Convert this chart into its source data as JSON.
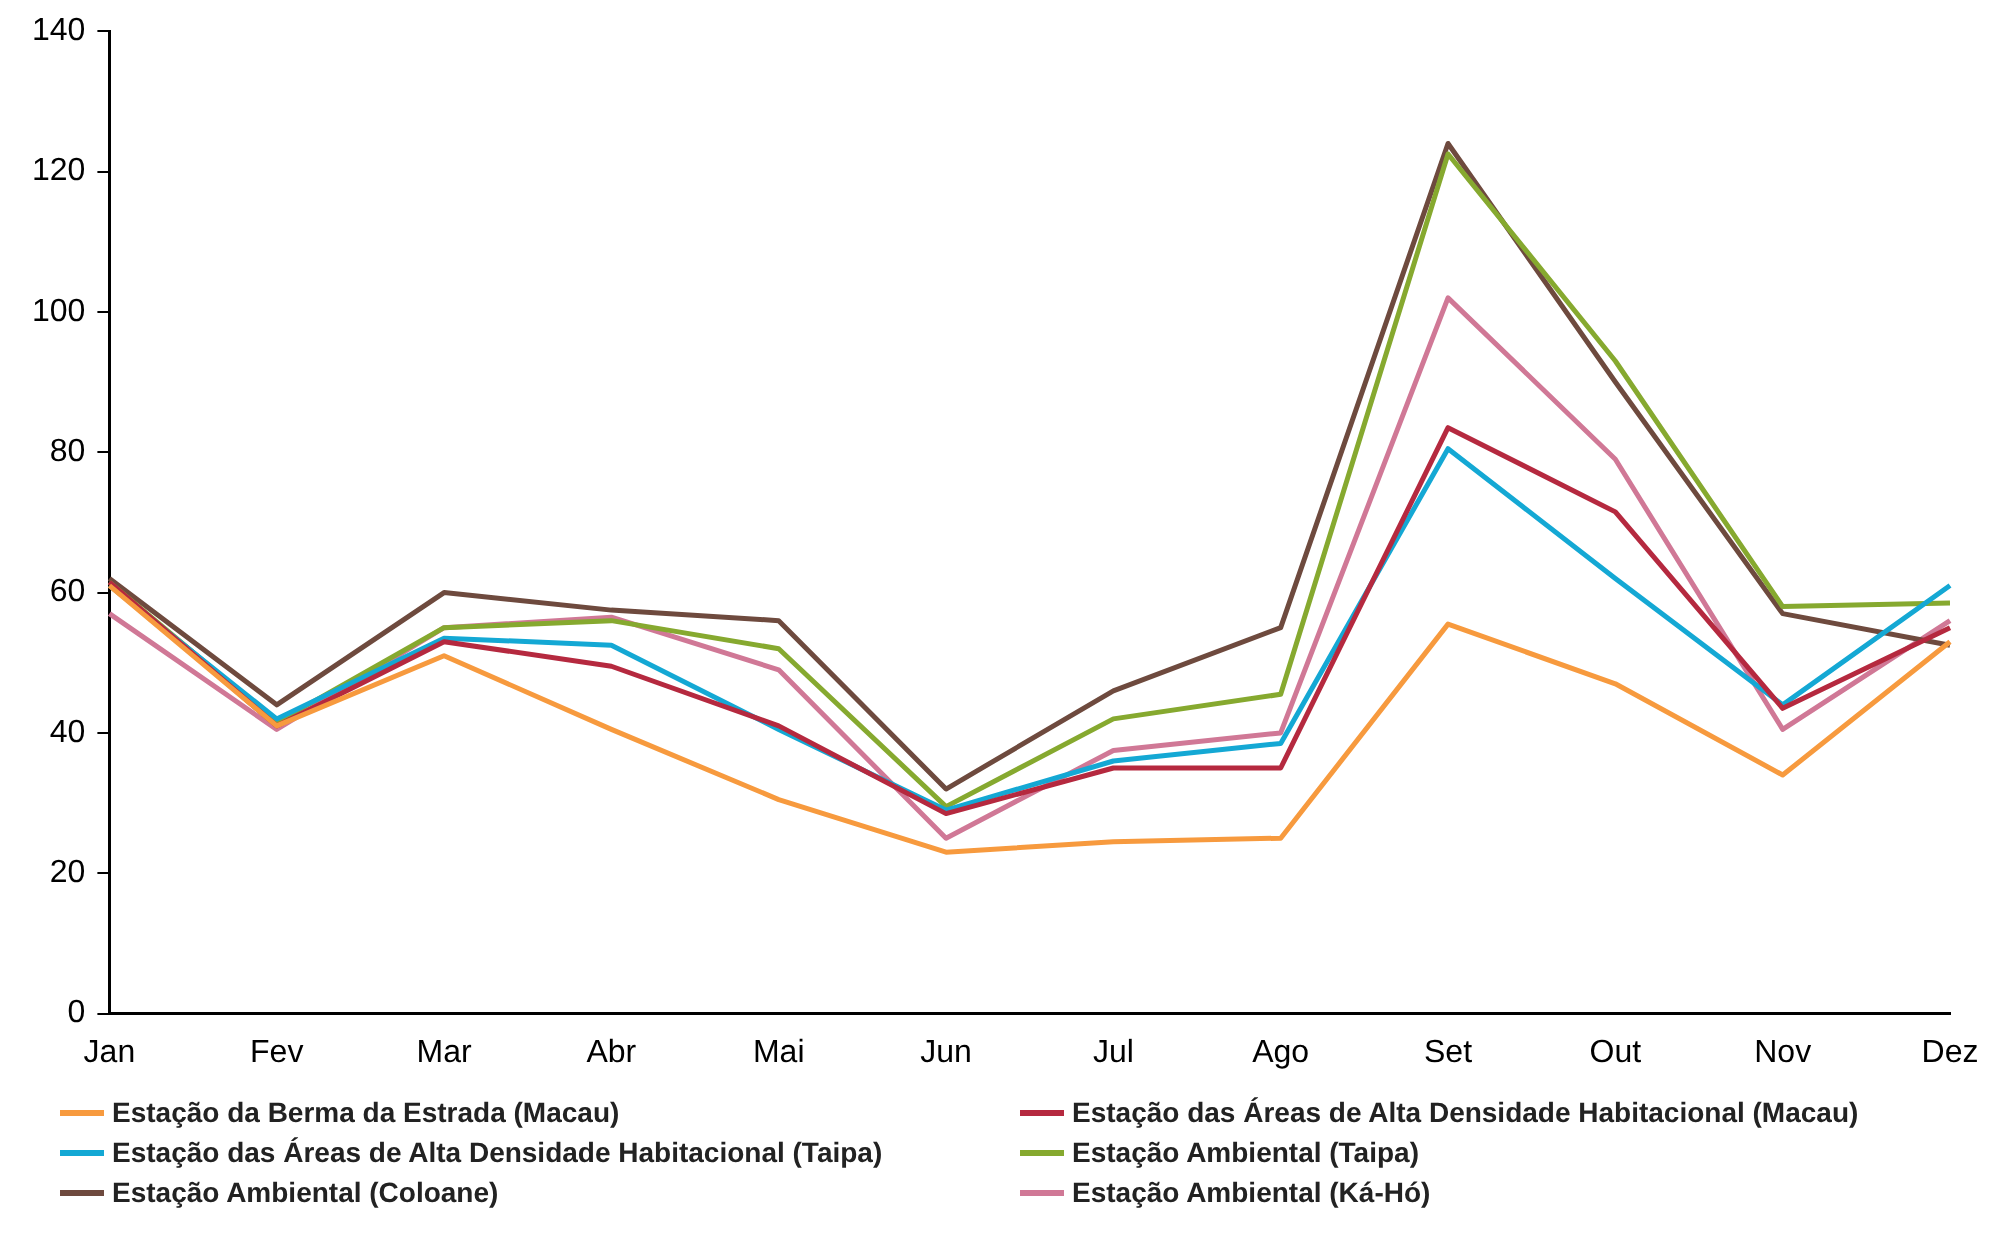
{
  "chart_data": {
    "type": "line",
    "categories": [
      "Jan",
      "Fev",
      "Mar",
      "Abr",
      "Mai",
      "Jun",
      "Jul",
      "Ago",
      "Set",
      "Out",
      "Nov",
      "Dez"
    ],
    "ylim": [
      0,
      140
    ],
    "yticks": [
      0,
      20,
      40,
      60,
      80,
      100,
      120,
      140
    ],
    "grid": false,
    "legend": "bottom",
    "marker": "none",
    "series": [
      {
        "name": "Estação da Berma da Estrada (Macau)",
        "color": "#f79a3e",
        "values": [
          61,
          41,
          51,
          40.5,
          30.5,
          23,
          24.5,
          25,
          55.5,
          47,
          34,
          53
        ]
      },
      {
        "name": "Estação das Áreas de Alta Densidade Habitacional (Macau)",
        "color": "#b5293f",
        "values": [
          61.5,
          41,
          53,
          49.5,
          41,
          28.5,
          35,
          35,
          83.5,
          71.5,
          43.5,
          55
        ]
      },
      {
        "name": "Estação das Áreas de Alta Densidade Habitacional (Taipa)",
        "color": "#14a8d4",
        "values": [
          61,
          42,
          53.5,
          52.5,
          40.5,
          29,
          36,
          38.5,
          80.5,
          62,
          44,
          61
        ]
      },
      {
        "name": "Estação Ambiental (Taipa)",
        "color": "#86a92f",
        "values": [
          61.5,
          41.5,
          55,
          56,
          52,
          29.5,
          42,
          45.5,
          122.5,
          93,
          58,
          58.5
        ]
      },
      {
        "name": "Estação Ambiental (Coloane)",
        "color": "#6e4a3e",
        "values": [
          62,
          44,
          60,
          57.5,
          56,
          32,
          46,
          55,
          124,
          90,
          57,
          52.5
        ]
      },
      {
        "name": "Estação Ambiental (Ká-Hó)",
        "color": "#d07896",
        "values": [
          57,
          40.5,
          55,
          56.5,
          49,
          25,
          37.5,
          40,
          102,
          79,
          40.5,
          56
        ]
      }
    ]
  }
}
